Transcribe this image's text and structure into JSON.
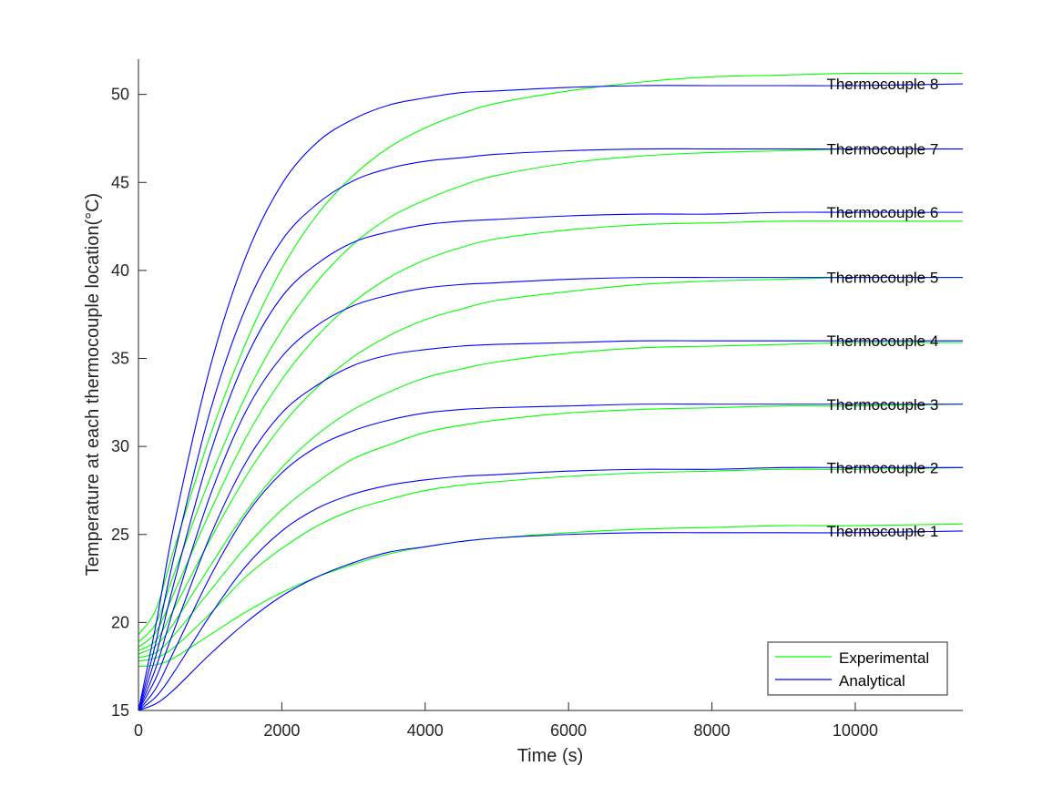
{
  "chart_data": {
    "type": "line",
    "title": "",
    "xlabel": "Time (s)",
    "ylabel": "Temperature at each thermocouple location(°C)",
    "xlim": [
      0,
      11500
    ],
    "ylim": [
      15,
      52
    ],
    "xticks": [
      0,
      2000,
      4000,
      6000,
      8000,
      10000
    ],
    "xtick_labels": [
      "0",
      "2000",
      "4000",
      "6000",
      "8000",
      "10000"
    ],
    "yticks": [
      15,
      20,
      25,
      30,
      35,
      40,
      45,
      50
    ],
    "ytick_labels": [
      "15",
      "20",
      "25",
      "30",
      "35",
      "40",
      "45",
      "50"
    ],
    "grid": false,
    "legend_position": "bottom-right",
    "legend": [
      {
        "label": "Experimental",
        "color": "#00ff00"
      },
      {
        "label": "Analytical",
        "color": "#0000ff"
      }
    ],
    "colors": {
      "experimental": "#00ff00",
      "analytical": "#0000ff",
      "axes": "#262626"
    },
    "x": [
      0,
      250,
      500,
      1000,
      1500,
      2000,
      2500,
      3000,
      3500,
      4000,
      4500,
      5000,
      6000,
      7000,
      8000,
      9000,
      10000,
      11500
    ],
    "series": [
      {
        "group": "Experimental",
        "thermocouple": 1,
        "values": [
          17.5,
          17.6,
          18.0,
          19.3,
          20.6,
          21.7,
          22.6,
          23.3,
          23.9,
          24.3,
          24.6,
          24.8,
          25.1,
          25.3,
          25.4,
          25.5,
          25.5,
          25.6
        ]
      },
      {
        "group": "Experimental",
        "thermocouple": 2,
        "values": [
          17.8,
          18.0,
          18.6,
          20.5,
          22.6,
          24.2,
          25.5,
          26.4,
          27.0,
          27.5,
          27.8,
          28.0,
          28.3,
          28.5,
          28.6,
          28.7,
          28.7,
          28.8
        ]
      },
      {
        "group": "Experimental",
        "thermocouple": 3,
        "values": [
          18.0,
          18.3,
          19.3,
          21.8,
          24.3,
          26.4,
          28.0,
          29.3,
          30.1,
          30.8,
          31.2,
          31.5,
          31.9,
          32.1,
          32.2,
          32.3,
          32.3,
          32.4
        ]
      },
      {
        "group": "Experimental",
        "thermocouple": 4,
        "values": [
          18.2,
          18.7,
          20.0,
          23.2,
          26.3,
          28.8,
          30.7,
          32.1,
          33.1,
          33.9,
          34.4,
          34.8,
          35.3,
          35.6,
          35.7,
          35.8,
          35.9,
          35.9
        ]
      },
      {
        "group": "Experimental",
        "thermocouple": 5,
        "values": [
          18.4,
          19.0,
          20.8,
          24.7,
          28.3,
          31.2,
          33.4,
          35.1,
          36.3,
          37.2,
          37.8,
          38.3,
          38.8,
          39.2,
          39.4,
          39.5,
          39.6,
          39.6
        ]
      },
      {
        "group": "Experimental",
        "thermocouple": 6,
        "values": [
          18.6,
          19.5,
          21.7,
          26.3,
          30.5,
          33.8,
          36.3,
          38.2,
          39.6,
          40.6,
          41.3,
          41.8,
          42.3,
          42.6,
          42.7,
          42.8,
          42.8,
          42.8
        ]
      },
      {
        "group": "Experimental",
        "thermocouple": 7,
        "values": [
          18.9,
          20.0,
          22.8,
          28.2,
          32.9,
          36.6,
          39.4,
          41.5,
          43.0,
          44.0,
          44.8,
          45.4,
          46.1,
          46.5,
          46.7,
          46.8,
          46.9,
          46.9
        ]
      },
      {
        "group": "Experimental",
        "thermocouple": 8,
        "values": [
          19.3,
          20.8,
          24.2,
          30.6,
          35.9,
          40.1,
          43.2,
          45.4,
          47.0,
          48.1,
          48.9,
          49.5,
          50.2,
          50.7,
          51.0,
          51.1,
          51.2,
          51.2
        ]
      },
      {
        "group": "Analytical",
        "thermocouple": 1,
        "values": [
          15.0,
          15.4,
          16.2,
          18.2,
          20.0,
          21.5,
          22.6,
          23.4,
          24.0,
          24.3,
          24.6,
          24.8,
          25.0,
          25.1,
          25.1,
          25.1,
          25.1,
          25.2
        ]
      },
      {
        "group": "Analytical",
        "thermocouple": 2,
        "values": [
          15.0,
          15.8,
          17.2,
          20.4,
          23.2,
          25.2,
          26.5,
          27.3,
          27.8,
          28.1,
          28.3,
          28.4,
          28.6,
          28.7,
          28.7,
          28.8,
          28.8,
          28.8
        ]
      },
      {
        "group": "Analytical",
        "thermocouple": 3,
        "values": [
          15.0,
          16.3,
          18.4,
          22.6,
          26.1,
          28.5,
          30.0,
          30.9,
          31.5,
          31.9,
          32.1,
          32.2,
          32.3,
          32.4,
          32.4,
          32.4,
          32.4,
          32.4
        ]
      },
      {
        "group": "Analytical",
        "thermocouple": 4,
        "values": [
          15.0,
          16.9,
          19.6,
          24.9,
          29.1,
          31.9,
          33.5,
          34.6,
          35.2,
          35.5,
          35.7,
          35.8,
          35.9,
          36.0,
          36.0,
          36.0,
          36.0,
          36.0
        ]
      },
      {
        "group": "Analytical",
        "thermocouple": 5,
        "values": [
          15.0,
          17.5,
          20.9,
          27.2,
          32.0,
          35.1,
          36.9,
          38.0,
          38.6,
          39.0,
          39.2,
          39.3,
          39.5,
          39.6,
          39.6,
          39.6,
          39.6,
          39.6
        ]
      },
      {
        "group": "Analytical",
        "thermocouple": 6,
        "values": [
          15.0,
          18.2,
          22.3,
          29.6,
          35.0,
          38.5,
          40.4,
          41.6,
          42.2,
          42.6,
          42.8,
          42.9,
          43.1,
          43.2,
          43.2,
          43.3,
          43.3,
          43.3
        ]
      },
      {
        "group": "Analytical",
        "thermocouple": 7,
        "values": [
          15.0,
          19.0,
          23.8,
          32.0,
          37.9,
          41.7,
          43.8,
          45.1,
          45.8,
          46.2,
          46.4,
          46.6,
          46.8,
          46.9,
          46.9,
          46.9,
          46.9,
          46.9
        ]
      },
      {
        "group": "Analytical",
        "thermocouple": 8,
        "values": [
          15.0,
          20.0,
          25.6,
          34.5,
          40.8,
          44.9,
          47.3,
          48.6,
          49.4,
          49.8,
          50.1,
          50.2,
          50.4,
          50.5,
          50.5,
          50.5,
          50.5,
          50.6
        ]
      }
    ],
    "annotations": [
      {
        "text": "Thermocouple 1",
        "x": 9600,
        "y": 25.2
      },
      {
        "text": "Thermocouple 2",
        "x": 9600,
        "y": 28.8
      },
      {
        "text": "Thermocouple 3",
        "x": 9600,
        "y": 32.4
      },
      {
        "text": "Thermocouple 4",
        "x": 9600,
        "y": 36.0
      },
      {
        "text": "Thermocouple 5",
        "x": 9600,
        "y": 39.6
      },
      {
        "text": "Thermocouple 6",
        "x": 9600,
        "y": 43.3
      },
      {
        "text": "Thermocouple 7",
        "x": 9600,
        "y": 46.9
      },
      {
        "text": "Thermocouple 8",
        "x": 9600,
        "y": 50.6
      }
    ]
  }
}
